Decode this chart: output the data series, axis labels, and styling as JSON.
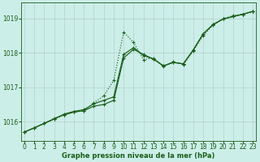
{
  "xlabel": "Graphe pression niveau de la mer (hPa)",
  "x_ticks": [
    0,
    1,
    2,
    3,
    4,
    5,
    6,
    7,
    8,
    9,
    10,
    11,
    12,
    13,
    14,
    15,
    16,
    17,
    18,
    19,
    20,
    21,
    22,
    23
  ],
  "y_ticks": [
    1016,
    1017,
    1018,
    1019
  ],
  "ylim": [
    1015.45,
    1019.45
  ],
  "xlim": [
    -0.3,
    23.3
  ],
  "background_color": "#cceee8",
  "plot_bg_color": "#cceee8",
  "grid_color": "#b0c8c8",
  "line_color": "#1a5e1a",
  "line_dotted": [
    1015.7,
    1015.82,
    1015.95,
    1016.1,
    1016.2,
    1016.28,
    1016.32,
    1016.55,
    1016.75,
    1017.2,
    1018.6,
    1018.3,
    1017.8,
    1017.85,
    1017.6,
    1017.75,
    1017.65,
    1018.05,
    1018.5,
    1018.8,
    1018.98,
    1019.08,
    1019.12,
    1019.2
  ],
  "line_solid1": [
    1015.7,
    1015.82,
    1015.95,
    1016.08,
    1016.2,
    1016.28,
    1016.32,
    1016.45,
    1016.5,
    1016.62,
    1017.85,
    1018.1,
    1017.95,
    1017.82,
    1017.62,
    1017.72,
    1017.68,
    1018.08,
    1018.55,
    1018.82,
    1018.98,
    1019.05,
    1019.12,
    1019.2
  ],
  "line_solid2": [
    1015.7,
    1015.82,
    1015.95,
    1016.08,
    1016.22,
    1016.3,
    1016.35,
    1016.52,
    1016.62,
    1016.72,
    1017.95,
    1018.15,
    1017.92,
    1017.82,
    1017.62,
    1017.72,
    1017.68,
    1018.08,
    1018.55,
    1018.82,
    1018.98,
    1019.05,
    1019.12,
    1019.2
  ],
  "xlabel_fontsize": 6.0,
  "tick_labelsize": 5.5,
  "linewidth": 0.85,
  "markersize": 3.5
}
